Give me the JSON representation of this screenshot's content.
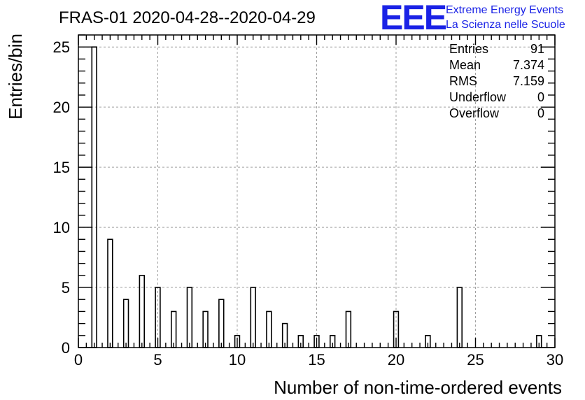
{
  "chart_data": {
    "type": "bar",
    "title": "FRAS-01 2020-04-28--2020-04-29",
    "xlabel": "Number of non-time-ordered events",
    "ylabel": "Entries/bin",
    "xlim": [
      0,
      30
    ],
    "ylim": [
      0,
      26
    ],
    "xticks": [
      0,
      5,
      10,
      15,
      20,
      25,
      30
    ],
    "yticks": [
      0,
      5,
      10,
      15,
      20,
      25
    ],
    "grid": true,
    "bin_width": 0.3,
    "points": [
      {
        "x": 1,
        "y": 25
      },
      {
        "x": 2,
        "y": 9
      },
      {
        "x": 3,
        "y": 4
      },
      {
        "x": 4,
        "y": 6
      },
      {
        "x": 5,
        "y": 5
      },
      {
        "x": 6,
        "y": 3
      },
      {
        "x": 7,
        "y": 5
      },
      {
        "x": 8,
        "y": 3
      },
      {
        "x": 9,
        "y": 4
      },
      {
        "x": 10,
        "y": 1
      },
      {
        "x": 11,
        "y": 5
      },
      {
        "x": 12,
        "y": 3
      },
      {
        "x": 13,
        "y": 2
      },
      {
        "x": 14,
        "y": 1
      },
      {
        "x": 15,
        "y": 1
      },
      {
        "x": 16,
        "y": 1
      },
      {
        "x": 17,
        "y": 3
      },
      {
        "x": 20,
        "y": 3
      },
      {
        "x": 22,
        "y": 1
      },
      {
        "x": 24,
        "y": 5
      },
      {
        "x": 29,
        "y": 1
      }
    ],
    "stats": [
      {
        "label": "Entries",
        "value": "91"
      },
      {
        "label": "Mean",
        "value": "7.374"
      },
      {
        "label": "RMS",
        "value": "7.159"
      },
      {
        "label": "Underflow",
        "value": "0"
      },
      {
        "label": "Overflow",
        "value": "0"
      }
    ]
  },
  "logo": {
    "mark": "EEE",
    "line1": "Extreme Energy Events",
    "line2": "La Scienza nelle Scuole",
    "color": "#1a22e6"
  }
}
